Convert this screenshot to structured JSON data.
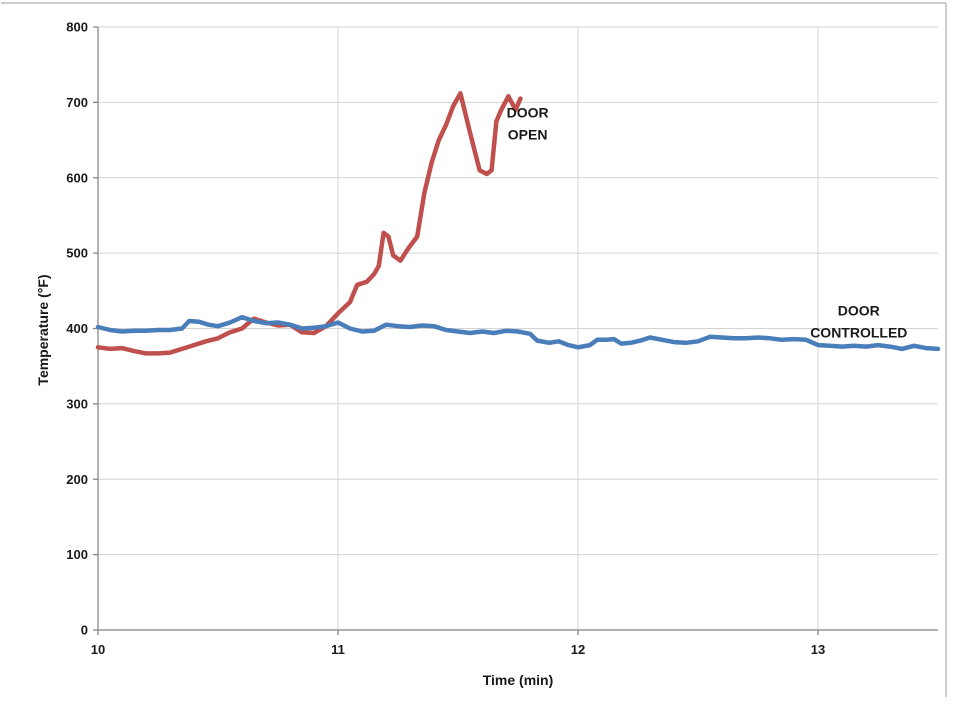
{
  "chart_data": {
    "type": "line",
    "title": "",
    "xlabel": "Time (min)",
    "ylabel": "Temperature (°F)",
    "xlim": [
      10,
      13.5
    ],
    "ylim": [
      0,
      800
    ],
    "x_ticks": [
      10,
      11,
      12,
      13
    ],
    "y_ticks": [
      0,
      100,
      200,
      300,
      400,
      500,
      600,
      700,
      800
    ],
    "x_tick_labels": [
      "10",
      "11",
      "12",
      "13"
    ],
    "y_tick_labels": [
      "0",
      "100",
      "200",
      "300",
      "400",
      "500",
      "600",
      "700",
      "800"
    ],
    "grid": true,
    "legend": "none",
    "annotations": [
      {
        "lines": [
          "DOOR",
          "OPEN"
        ],
        "x": 11.79,
        "y": 680
      },
      {
        "lines": [
          "DOOR",
          "CONTROLLED"
        ],
        "x": 13.17,
        "y": 417
      }
    ],
    "series": [
      {
        "label": "DOOR OPEN",
        "color": "#c0504d",
        "points": [
          [
            10.0,
            375
          ],
          [
            10.05,
            373
          ],
          [
            10.1,
            374
          ],
          [
            10.15,
            370
          ],
          [
            10.2,
            367
          ],
          [
            10.25,
            367
          ],
          [
            10.3,
            368
          ],
          [
            10.35,
            373
          ],
          [
            10.4,
            378
          ],
          [
            10.45,
            383
          ],
          [
            10.5,
            387
          ],
          [
            10.55,
            395
          ],
          [
            10.6,
            400
          ],
          [
            10.63,
            408
          ],
          [
            10.65,
            413
          ],
          [
            10.7,
            408
          ],
          [
            10.75,
            404
          ],
          [
            10.8,
            405
          ],
          [
            10.85,
            395
          ],
          [
            10.9,
            394
          ],
          [
            10.95,
            403
          ],
          [
            11.0,
            420
          ],
          [
            11.05,
            435
          ],
          [
            11.08,
            458
          ],
          [
            11.12,
            462
          ],
          [
            11.15,
            472
          ],
          [
            11.17,
            483
          ],
          [
            11.19,
            527
          ],
          [
            11.21,
            522
          ],
          [
            11.23,
            497
          ],
          [
            11.26,
            490
          ],
          [
            11.29,
            505
          ],
          [
            11.33,
            522
          ],
          [
            11.36,
            580
          ],
          [
            11.39,
            620
          ],
          [
            11.42,
            650
          ],
          [
            11.45,
            670
          ],
          [
            11.48,
            695
          ],
          [
            11.51,
            712
          ],
          [
            11.55,
            660
          ],
          [
            11.59,
            610
          ],
          [
            11.62,
            605
          ],
          [
            11.64,
            610
          ],
          [
            11.66,
            675
          ],
          [
            11.68,
            690
          ],
          [
            11.71,
            708
          ],
          [
            11.74,
            690
          ],
          [
            11.76,
            705
          ]
        ]
      },
      {
        "label": "DOOR CONTROLLED",
        "color": "#4a7ebb",
        "points": [
          [
            10.0,
            402
          ],
          [
            10.05,
            398
          ],
          [
            10.1,
            396
          ],
          [
            10.15,
            397
          ],
          [
            10.2,
            397
          ],
          [
            10.25,
            398
          ],
          [
            10.3,
            398
          ],
          [
            10.35,
            400
          ],
          [
            10.38,
            410
          ],
          [
            10.42,
            409
          ],
          [
            10.46,
            405
          ],
          [
            10.5,
            403
          ],
          [
            10.55,
            408
          ],
          [
            10.6,
            415
          ],
          [
            10.65,
            410
          ],
          [
            10.7,
            407
          ],
          [
            10.75,
            408
          ],
          [
            10.8,
            405
          ],
          [
            10.85,
            400
          ],
          [
            10.9,
            401
          ],
          [
            10.95,
            403
          ],
          [
            11.0,
            408
          ],
          [
            11.05,
            400
          ],
          [
            11.1,
            396
          ],
          [
            11.15,
            397
          ],
          [
            11.2,
            405
          ],
          [
            11.25,
            403
          ],
          [
            11.3,
            402
          ],
          [
            11.35,
            404
          ],
          [
            11.4,
            403
          ],
          [
            11.45,
            398
          ],
          [
            11.5,
            396
          ],
          [
            11.55,
            394
          ],
          [
            11.6,
            396
          ],
          [
            11.65,
            394
          ],
          [
            11.7,
            397
          ],
          [
            11.75,
            396
          ],
          [
            11.8,
            393
          ],
          [
            11.83,
            384
          ],
          [
            11.88,
            381
          ],
          [
            11.92,
            383
          ],
          [
            11.96,
            378
          ],
          [
            12.0,
            375
          ],
          [
            12.05,
            378
          ],
          [
            12.08,
            385
          ],
          [
            12.12,
            385
          ],
          [
            12.15,
            386
          ],
          [
            12.18,
            380
          ],
          [
            12.22,
            381
          ],
          [
            12.26,
            384
          ],
          [
            12.3,
            388
          ],
          [
            12.35,
            385
          ],
          [
            12.4,
            382
          ],
          [
            12.45,
            381
          ],
          [
            12.5,
            383
          ],
          [
            12.55,
            389
          ],
          [
            12.6,
            388
          ],
          [
            12.65,
            387
          ],
          [
            12.7,
            387
          ],
          [
            12.75,
            388
          ],
          [
            12.8,
            387
          ],
          [
            12.85,
            385
          ],
          [
            12.9,
            386
          ],
          [
            12.95,
            385
          ],
          [
            13.0,
            378
          ],
          [
            13.05,
            377
          ],
          [
            13.1,
            376
          ],
          [
            13.15,
            377
          ],
          [
            13.2,
            376
          ],
          [
            13.25,
            378
          ],
          [
            13.3,
            376
          ],
          [
            13.35,
            373
          ],
          [
            13.4,
            377
          ],
          [
            13.45,
            374
          ],
          [
            13.5,
            373
          ]
        ]
      }
    ]
  }
}
